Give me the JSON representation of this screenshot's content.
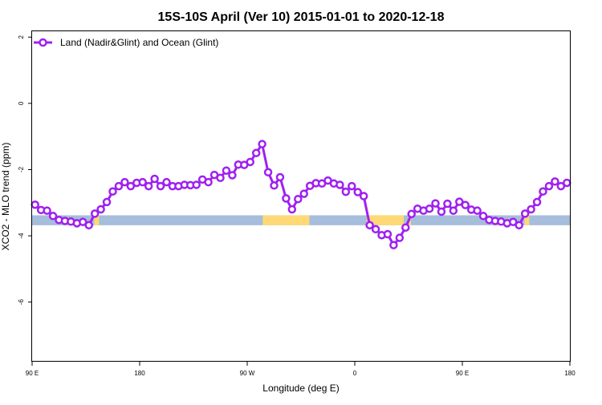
{
  "chart_data": {
    "type": "line",
    "title": "15S-10S April (Ver 10)   2015-01-01 to 2020-12-18",
    "xlabel": "Longitude (deg E)",
    "ylabel": "XCO2 - MLO trend (ppm)",
    "xlim": [
      90,
      540
    ],
    "ylim": [
      -7.8,
      2.2
    ],
    "x_ticks": [
      90,
      180,
      270,
      360,
      450,
      540
    ],
    "x_tick_labels": [
      "90 E",
      "180",
      "90 W",
      "0",
      "90 E",
      "180"
    ],
    "y_ticks": [
      2,
      0,
      -2,
      -4,
      -6
    ],
    "y_tick_labels": [
      "2",
      "0",
      "-2",
      "-4",
      "-6"
    ],
    "grid": false,
    "legend": {
      "position": "top-left",
      "entries": [
        "Land (Nadir&Glint) and Ocean (Glint)"
      ]
    },
    "series": [
      {
        "name": "Land (Nadir&Glint) and Ocean (Glint)",
        "color": "#A020F0",
        "x_start": 92.5,
        "x_step": 5,
        "values": [
          -3.06,
          -3.22,
          -3.24,
          -3.4,
          -3.52,
          -3.55,
          -3.57,
          -3.62,
          -3.58,
          -3.68,
          -3.33,
          -3.2,
          -2.98,
          -2.66,
          -2.5,
          -2.38,
          -2.5,
          -2.4,
          -2.38,
          -2.5,
          -2.28,
          -2.5,
          -2.38,
          -2.5,
          -2.5,
          -2.46,
          -2.47,
          -2.46,
          -2.3,
          -2.38,
          -2.16,
          -2.25,
          -2.03,
          -2.17,
          -1.85,
          -1.86,
          -1.77,
          -1.5,
          -1.23,
          -2.08,
          -2.48,
          -2.23,
          -2.87,
          -3.2,
          -2.89,
          -2.73,
          -2.49,
          -2.41,
          -2.42,
          -2.33,
          -2.42,
          -2.46,
          -2.67,
          -2.5,
          -2.68,
          -2.8,
          -3.68,
          -3.8,
          -3.98,
          -3.95,
          -4.28,
          -4.06,
          -3.75,
          -3.34,
          -3.18,
          -3.24,
          -3.18,
          -3.02,
          -3.27,
          -3.03,
          -3.24,
          -2.97,
          -3.07,
          -3.21,
          -3.24,
          -3.4,
          -3.52,
          -3.55,
          -3.57,
          -3.62,
          -3.58,
          -3.68,
          -3.33,
          -3.2,
          -2.98,
          -2.66,
          -2.5,
          -2.36,
          -2.5,
          -2.4
        ]
      }
    ],
    "surface_band": {
      "y_range": [
        -3.68,
        -3.38
      ],
      "land_color": "#A6BDDB",
      "ocean_color": "#FED976",
      "ocean_segments": [
        [
          142,
          146
        ],
        [
          283,
          322
        ],
        [
          370,
          401
        ],
        [
          405,
          407
        ],
        [
          502,
          506
        ]
      ]
    }
  }
}
